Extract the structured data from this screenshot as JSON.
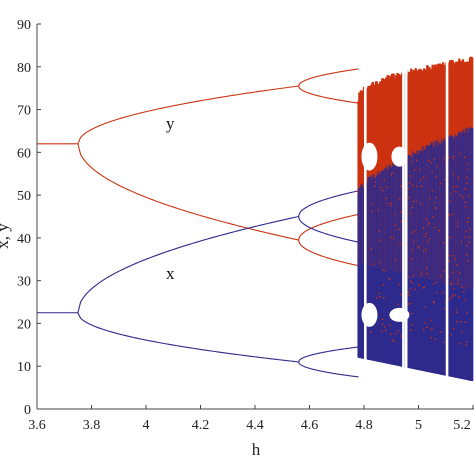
{
  "chart_data": {
    "type": "scatter",
    "title": "",
    "xlabel": "h",
    "ylabel": "x, y",
    "xlim": [
      3.6,
      5.2
    ],
    "ylim": [
      0,
      90
    ],
    "xticks": [
      "3.6",
      "3.8",
      "4",
      "4.2",
      "4.4",
      "4.6",
      "4.8",
      "5",
      "5.2"
    ],
    "yticks": [
      "0",
      "10",
      "20",
      "30",
      "40",
      "50",
      "60",
      "70",
      "80",
      "90"
    ],
    "grid": false,
    "colors": {
      "y": "#cc3311",
      "x": "#2e2a8c"
    },
    "annotations": [
      {
        "text": "y",
        "x": 4.07,
        "y": 65
      },
      {
        "text": "x",
        "x": 4.07,
        "y": 30
      }
    ],
    "series": [
      {
        "name": "y",
        "description_points": [
          {
            "h": 3.6,
            "y": 62
          },
          {
            "h": 3.75,
            "y": 62
          },
          {
            "h": 4.0,
            "y": 70.5
          },
          {
            "h": 4.2,
            "y": 73.2
          },
          {
            "h": 4.4,
            "y": 74.8
          },
          {
            "h": 4.56,
            "y": 75.5
          },
          {
            "h": 4.0,
            "y": 49
          },
          {
            "h": 4.2,
            "y": 45.5
          },
          {
            "h": 4.4,
            "y": 42.5
          },
          {
            "h": 4.56,
            "y": 39.5
          }
        ]
      },
      {
        "name": "x",
        "description_points": [
          {
            "h": 3.6,
            "y": 22.5
          },
          {
            "h": 3.75,
            "y": 22.5
          },
          {
            "h": 4.0,
            "y": 35
          },
          {
            "h": 4.2,
            "y": 40.5
          },
          {
            "h": 4.4,
            "y": 43.5
          },
          {
            "h": 4.56,
            "y": 45
          },
          {
            "h": 4.0,
            "y": 15
          },
          {
            "h": 4.2,
            "y": 13
          },
          {
            "h": 4.4,
            "y": 12
          },
          {
            "h": 4.56,
            "y": 11
          }
        ]
      }
    ]
  }
}
